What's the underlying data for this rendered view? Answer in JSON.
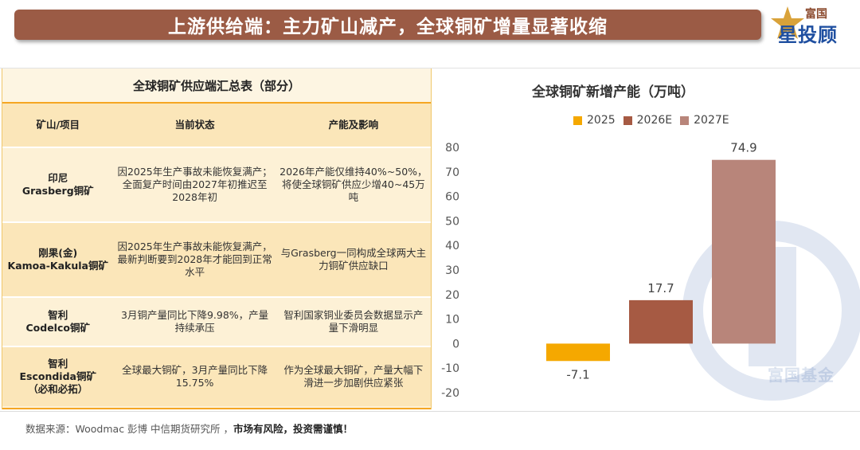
{
  "header": {
    "title": "上游供给端：主力矿山减产，全球铜矿增量显著收缩"
  },
  "logo": {
    "top": "富国",
    "main": "星投顾"
  },
  "table": {
    "title": "全球铜矿供应端汇总表（部分）",
    "headers": [
      "矿山/项目",
      "当前状态",
      "产能及影响"
    ],
    "rows": [
      {
        "mine": "印尼\nGrasberg铜矿",
        "status": "因2025年生产事故未能恢复满产；全面复产时间由2027年初推迟至2028年初",
        "impact": "2026年产能仅维持40%~50%，将使全球铜矿供应少增40~45万吨"
      },
      {
        "mine": "刚果(金)\nKamoa-Kakula铜矿",
        "status": "因2025年生产事故未能恢复满产，最新判断要到2028年才能回到正常水平",
        "impact": "与Grasberg一同构成全球两大主力铜矿供应缺口"
      },
      {
        "mine": "智利\nCodelco铜矿",
        "status": "3月铜产量同比下降9.98%，产量持续承压",
        "impact": "智利国家铜业委员会数据显示产量下滑明显"
      },
      {
        "mine": "智利\nEscondida铜矿\n（必和必拓）",
        "status": "全球最大铜矿，3月产量同比下降15.75%",
        "impact": "作为全球最大铜矿，产量大幅下滑进一步加剧供应紧张"
      }
    ]
  },
  "chart_data": {
    "type": "bar",
    "title": "全球铜矿新增产能（万吨）",
    "categories": [
      "2025",
      "2026E",
      "2027E"
    ],
    "values": [
      -7.1,
      17.7,
      74.9
    ],
    "value_labels": [
      "-7.1",
      "17.7",
      "74.9"
    ],
    "series": [
      {
        "name": "2025",
        "color": "#f5a800"
      },
      {
        "name": "2026E",
        "color": "#a65a43"
      },
      {
        "name": "2027E",
        "color": "#b8857a"
      }
    ],
    "ylim": [
      -20,
      80
    ],
    "yticks": [
      "80",
      "70",
      "60",
      "50",
      "40",
      "30",
      "20",
      "10",
      "0",
      "-10",
      "-20"
    ],
    "legend": "top",
    "grid": false
  },
  "watermark": {
    "text": "富国基金"
  },
  "footer": {
    "source": "数据来源：Woodmac 彭博 中信期货研究所 ，",
    "warning": "市场有风险，投资需谨慎！"
  }
}
